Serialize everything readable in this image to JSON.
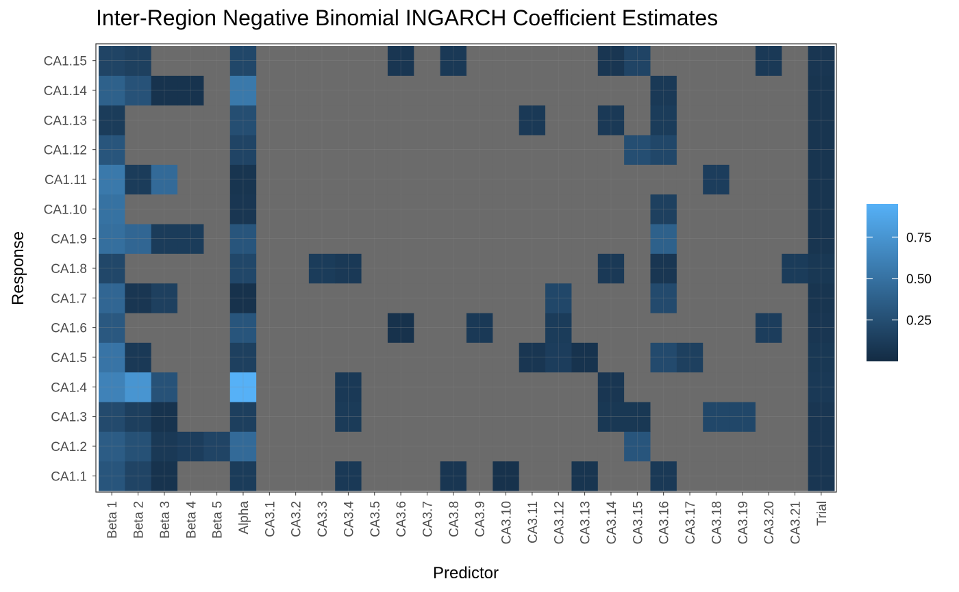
{
  "chart_data": {
    "type": "heatmap",
    "title": "Inter-Region Negative Binomial INGARCH Coefficient Estimates",
    "xlabel": "Predictor",
    "ylabel": "Response",
    "x_categories": [
      "Beta 1",
      "Beta 2",
      "Beta 3",
      "Beta 4",
      "Beta 5",
      "Alpha",
      "CA3.1",
      "CA3.2",
      "CA3.3",
      "CA3.4",
      "CA3.5",
      "CA3.6",
      "CA3.7",
      "CA3.8",
      "CA3.9",
      "CA3.10",
      "CA3.11",
      "CA3.12",
      "CA3.13",
      "CA3.14",
      "CA3.15",
      "CA3.16",
      "CA3.17",
      "CA3.18",
      "CA3.19",
      "CA3.20",
      "CA3.21",
      "Trial"
    ],
    "y_categories": [
      "CA1.1",
      "CA1.2",
      "CA1.3",
      "CA1.4",
      "CA1.5",
      "CA1.6",
      "CA1.7",
      "CA1.8",
      "CA1.9",
      "CA1.10",
      "CA1.11",
      "CA1.12",
      "CA1.13",
      "CA1.14",
      "CA1.15"
    ],
    "na_color": "#6b6b6b",
    "color_scale": {
      "low": "#132b43",
      "high": "#56b1f7",
      "min": 0.0,
      "max": 0.95
    },
    "legend": {
      "ticks": [
        0.25,
        0.5,
        0.75
      ],
      "tick_labels": [
        "0.25",
        "0.50",
        "0.75"
      ],
      "position": "right"
    },
    "values": [
      [
        0.3,
        0.18,
        0.06,
        null,
        null,
        0.12,
        null,
        null,
        null,
        0.1,
        null,
        null,
        null,
        0.08,
        null,
        0.05,
        null,
        null,
        0.07,
        null,
        null,
        0.1,
        null,
        null,
        null,
        null,
        null,
        0.08
      ],
      [
        0.35,
        0.27,
        0.1,
        0.13,
        0.18,
        0.45,
        null,
        null,
        null,
        null,
        null,
        null,
        null,
        null,
        null,
        null,
        null,
        null,
        null,
        null,
        0.3,
        null,
        null,
        null,
        null,
        null,
        null,
        0.08
      ],
      [
        0.22,
        0.14,
        0.06,
        null,
        null,
        0.14,
        null,
        null,
        null,
        0.11,
        null,
        null,
        null,
        null,
        null,
        null,
        null,
        null,
        null,
        0.09,
        0.09,
        null,
        null,
        0.2,
        0.2,
        null,
        null,
        0.08
      ],
      [
        0.62,
        0.75,
        0.28,
        null,
        null,
        0.95,
        null,
        null,
        null,
        0.1,
        null,
        null,
        null,
        null,
        null,
        null,
        null,
        null,
        null,
        0.08,
        null,
        null,
        null,
        null,
        null,
        null,
        null,
        0.1
      ],
      [
        0.52,
        0.1,
        null,
        null,
        null,
        0.15,
        null,
        null,
        null,
        null,
        null,
        null,
        null,
        null,
        null,
        null,
        0.08,
        0.13,
        0.06,
        null,
        null,
        0.22,
        0.15,
        null,
        null,
        null,
        null,
        0.09
      ],
      [
        0.32,
        null,
        null,
        null,
        null,
        0.3,
        null,
        null,
        null,
        null,
        null,
        0.05,
        null,
        null,
        0.1,
        null,
        null,
        0.12,
        null,
        null,
        null,
        null,
        null,
        null,
        null,
        0.13,
        null,
        0.08
      ],
      [
        0.42,
        0.08,
        0.15,
        null,
        null,
        0.05,
        null,
        null,
        null,
        null,
        null,
        null,
        null,
        null,
        null,
        null,
        null,
        0.2,
        null,
        null,
        null,
        0.22,
        null,
        null,
        null,
        null,
        null,
        0.07
      ],
      [
        0.2,
        null,
        null,
        null,
        null,
        0.2,
        null,
        null,
        0.12,
        0.1,
        null,
        null,
        null,
        null,
        null,
        null,
        null,
        null,
        null,
        0.1,
        null,
        0.08,
        null,
        null,
        null,
        null,
        0.12,
        0.09
      ],
      [
        0.48,
        0.42,
        0.12,
        0.12,
        null,
        0.3,
        null,
        null,
        null,
        null,
        null,
        null,
        null,
        null,
        null,
        null,
        null,
        null,
        null,
        null,
        null,
        0.38,
        null,
        null,
        null,
        null,
        null,
        0.07
      ],
      [
        0.5,
        null,
        null,
        null,
        null,
        0.08,
        null,
        null,
        null,
        null,
        null,
        null,
        null,
        null,
        null,
        null,
        null,
        null,
        null,
        null,
        null,
        0.15,
        null,
        null,
        null,
        null,
        null,
        0.07
      ],
      [
        0.55,
        0.12,
        0.45,
        null,
        null,
        0.07,
        null,
        null,
        null,
        null,
        null,
        null,
        null,
        null,
        null,
        null,
        null,
        null,
        null,
        null,
        null,
        null,
        null,
        0.13,
        null,
        null,
        null,
        0.07
      ],
      [
        0.3,
        null,
        null,
        null,
        null,
        0.18,
        null,
        null,
        null,
        null,
        null,
        null,
        null,
        null,
        null,
        null,
        null,
        null,
        null,
        null,
        0.25,
        0.2,
        null,
        null,
        null,
        null,
        null,
        0.07
      ],
      [
        0.12,
        null,
        null,
        null,
        null,
        0.25,
        null,
        null,
        null,
        null,
        null,
        null,
        null,
        null,
        null,
        null,
        0.1,
        null,
        null,
        0.1,
        null,
        0.12,
        null,
        null,
        null,
        null,
        null,
        0.07
      ],
      [
        0.38,
        0.28,
        0.06,
        0.06,
        null,
        0.55,
        null,
        null,
        null,
        null,
        null,
        null,
        null,
        null,
        null,
        null,
        null,
        null,
        null,
        null,
        null,
        0.1,
        null,
        null,
        null,
        null,
        null,
        0.07
      ],
      [
        0.18,
        0.15,
        null,
        null,
        null,
        0.2,
        null,
        null,
        null,
        null,
        null,
        0.08,
        null,
        0.1,
        null,
        null,
        null,
        null,
        null,
        0.08,
        0.18,
        null,
        null,
        null,
        null,
        0.1,
        null,
        0.08
      ]
    ]
  }
}
